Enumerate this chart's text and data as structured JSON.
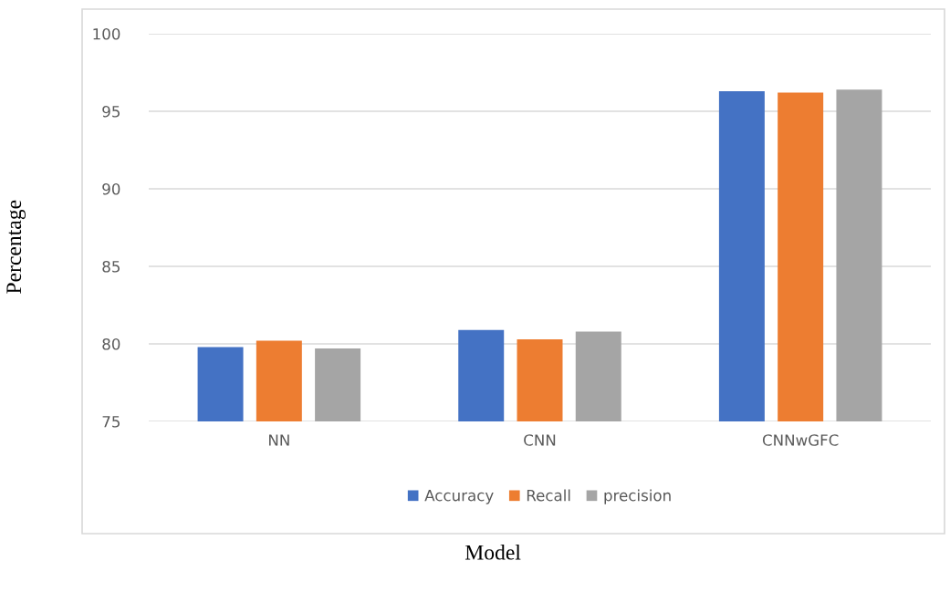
{
  "chart_data": {
    "type": "bar",
    "xlabel": "Model",
    "ylabel": "Percentage",
    "categories": [
      "NN",
      "CNN",
      "CNNwGFC"
    ],
    "series": [
      {
        "name": "Accuracy",
        "color": "#4472c4",
        "values": [
          79.8,
          80.9,
          96.3
        ]
      },
      {
        "name": "Recall",
        "color": "#ed7d31",
        "values": [
          80.2,
          80.3,
          96.2
        ]
      },
      {
        "name": "precision",
        "color": "#a5a5a5",
        "values": [
          79.7,
          80.8,
          96.4
        ]
      }
    ],
    "ylim": [
      75,
      100
    ],
    "yticks": [
      75,
      80,
      85,
      90,
      95,
      100
    ],
    "grid": "y",
    "legend": "bottom"
  }
}
